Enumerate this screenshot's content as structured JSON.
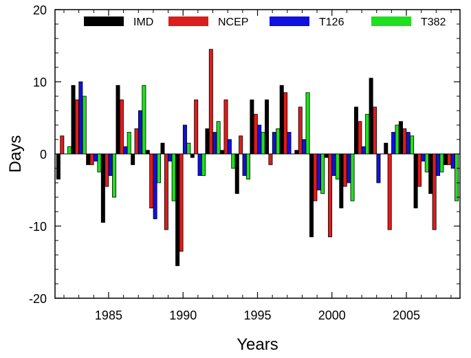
{
  "chart_data": {
    "type": "bar",
    "xlabel": "Years",
    "ylabel": "Days",
    "ylim": [
      -20,
      20
    ],
    "xlim": [
      1981.4,
      2008.6
    ],
    "yticks": [
      -20,
      -10,
      0,
      10,
      20
    ],
    "xticks": [
      1985,
      1990,
      1995,
      2000,
      2005
    ],
    "legend_position": "top",
    "x": [
      1982,
      1983,
      1984,
      1985,
      1986,
      1987,
      1988,
      1989,
      1990,
      1991,
      1992,
      1993,
      1994,
      1995,
      1996,
      1997,
      1998,
      1999,
      2000,
      2001,
      2002,
      2003,
      2004,
      2005,
      2006,
      2007,
      2008
    ],
    "series": [
      {
        "name": "IMD",
        "color": "#000000",
        "values": [
          -3.5,
          9.5,
          -1.5,
          -9.5,
          9.5,
          -1.5,
          0.5,
          1.5,
          -15.5,
          -0.5,
          3.5,
          0.5,
          -5.5,
          7.5,
          7.5,
          9.5,
          0.5,
          -11.5,
          -0.5,
          -7.5,
          6.5,
          10.5,
          1.5,
          4.5,
          -7.5,
          -5.5,
          -1.5
        ]
      },
      {
        "name": "NCEP",
        "color": "#dd1c1c",
        "values": [
          2.5,
          7.5,
          -1.5,
          -4.5,
          7.5,
          3.5,
          -7.5,
          -10.5,
          -13.5,
          7.5,
          14.5,
          7.5,
          2.5,
          5.5,
          -1.5,
          8.5,
          6.5,
          -6.5,
          -11.5,
          -4.5,
          4.5,
          6.5,
          -10.5,
          3.5,
          -4.5,
          -10.5,
          -1.5
        ]
      },
      {
        "name": "T126",
        "color": "#1010e0",
        "values": [
          0.0,
          10.0,
          -1.0,
          -3.0,
          1.0,
          6.0,
          -9.0,
          -1.0,
          4.0,
          -3.0,
          3.0,
          2.0,
          -3.0,
          4.0,
          3.0,
          3.0,
          2.0,
          -5.0,
          -3.0,
          -4.0,
          1.0,
          -4.0,
          3.0,
          3.0,
          -1.0,
          -3.0,
          -2.0
        ]
      },
      {
        "name": "T382",
        "color": "#1ee01e",
        "values": [
          1.0,
          8.0,
          -2.5,
          -6.0,
          3.0,
          9.5,
          -4.0,
          -6.5,
          1.5,
          -3.0,
          4.5,
          -2.0,
          -3.5,
          3.0,
          3.5,
          0.0,
          8.5,
          -5.5,
          -3.5,
          -6.5,
          5.5,
          0.0,
          4.0,
          2.5,
          -2.5,
          -2.5,
          -6.5
        ]
      }
    ]
  }
}
